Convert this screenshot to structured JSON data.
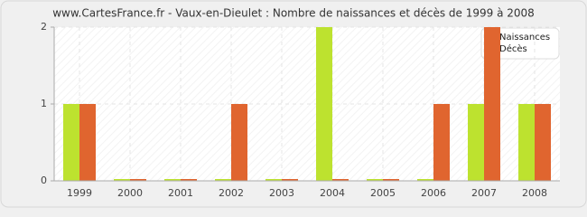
{
  "chart_data": {
    "type": "bar",
    "title": "www.CartesFrance.fr - Vaux-en-Dieulet : Nombre de naissances et décès de 1999 à 2008",
    "categories": [
      "1999",
      "2000",
      "2001",
      "2002",
      "2003",
      "2004",
      "2005",
      "2006",
      "2007",
      "2008"
    ],
    "series": [
      {
        "name": "Naissances",
        "color": "#bde22f",
        "values": [
          1,
          0,
          0,
          0,
          0,
          2,
          0,
          0,
          1,
          1
        ]
      },
      {
        "name": "Décès",
        "color": "#e0652f",
        "values": [
          1,
          0,
          0,
          1,
          0,
          0,
          0,
          1,
          2,
          1
        ]
      }
    ],
    "ylim": [
      0,
      2
    ],
    "yticks": [
      0,
      1,
      2
    ],
    "grid": true,
    "legend": "top-right"
  }
}
